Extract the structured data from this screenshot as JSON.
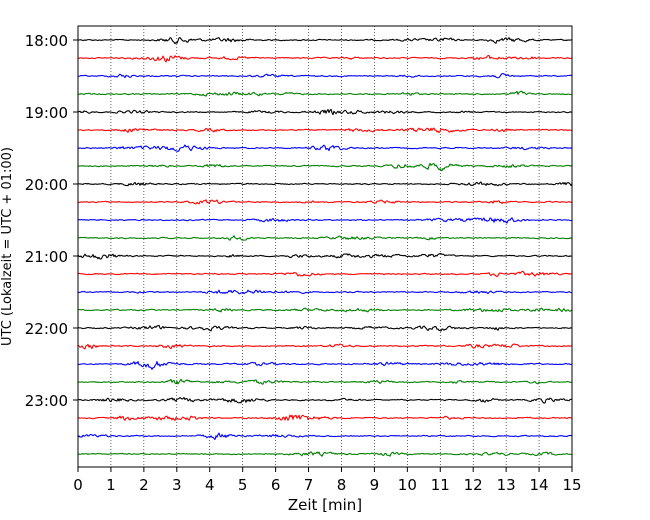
{
  "chart_data": {
    "type": "line",
    "subtype": "helicorder",
    "title": "",
    "xlabel": "Zeit  [min]",
    "ylabel": "UTC (Lokalzeit = UTC + 01:00)",
    "xlim": [
      0,
      15
    ],
    "x_ticks": [
      "0",
      "1",
      "2",
      "3",
      "4",
      "5",
      "6",
      "7",
      "8",
      "9",
      "10",
      "11",
      "12",
      "13",
      "14",
      "15"
    ],
    "y_tick_labels": [
      "18:00",
      "19:00",
      "20:00",
      "21:00",
      "22:00",
      "23:00"
    ],
    "grid": "vertical-dotted",
    "trace_interval_minutes": 15,
    "trace_colors": [
      "#000000",
      "#ff0000",
      "#0000ff",
      "#008000"
    ],
    "trace_start_times": [
      "18:00",
      "18:15",
      "18:30",
      "18:45",
      "19:00",
      "19:15",
      "19:30",
      "19:45",
      "20:00",
      "20:15",
      "20:30",
      "20:45",
      "21:00",
      "21:15",
      "21:30",
      "21:45",
      "22:00",
      "22:15",
      "22:30",
      "22:45",
      "23:00",
      "23:15",
      "23:30",
      "23:45"
    ]
  }
}
